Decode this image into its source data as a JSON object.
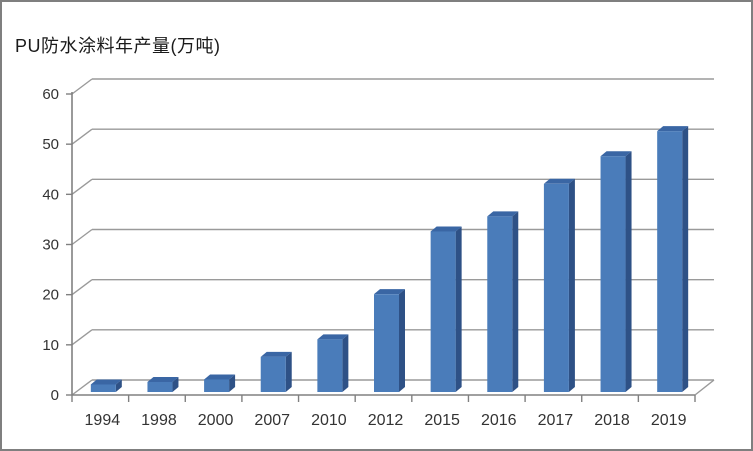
{
  "window": {
    "background": "#ffffff",
    "border_color": "#7f7f7f"
  },
  "chart_data": {
    "type": "bar",
    "style": "3d-column",
    "title": "PU防水涂料年产量(万吨)",
    "categories": [
      "1994",
      "1998",
      "2000",
      "2007",
      "2010",
      "2012",
      "2015",
      "2016",
      "2017",
      "2018",
      "2019"
    ],
    "values": [
      1.5,
      2,
      2.5,
      7,
      10.5,
      19.5,
      32,
      35,
      41.5,
      47,
      52
    ],
    "xlabel": "",
    "ylabel": "",
    "ylim": [
      0,
      60
    ],
    "ytick_interval": 10,
    "ytick_labels": [
      "0",
      "10",
      "20",
      "30",
      "40",
      "50",
      "60"
    ],
    "grid": true,
    "legend": false,
    "colors": {
      "bar_front": "#4a7cba",
      "bar_top": "#3a66a4",
      "bar_side": "#2e5186",
      "gridline": "#9a9a9a",
      "axis": "#808080",
      "text": "#333333"
    }
  }
}
